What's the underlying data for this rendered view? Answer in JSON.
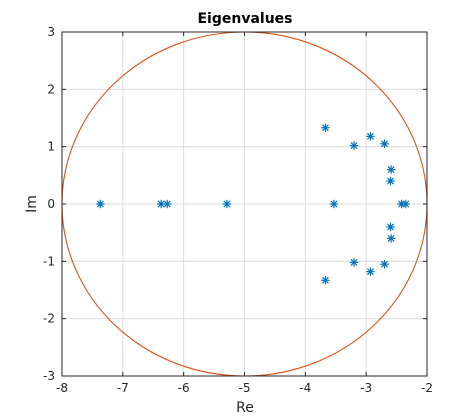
{
  "chart_data": {
    "type": "scatter",
    "title": "Eigenvalues",
    "xlabel": "Re",
    "ylabel": "Im",
    "xlim": [
      -8,
      -2
    ],
    "ylim": [
      -3,
      3
    ],
    "xticks": [
      -8,
      -7,
      -6,
      -5,
      -4,
      -3,
      -2
    ],
    "yticks": [
      -3,
      -2,
      -1,
      0,
      1,
      2,
      3
    ],
    "grid": true,
    "series": [
      {
        "marker": "asterisk",
        "color": "#0072BD",
        "points": [
          [
            -7.37,
            0
          ],
          [
            -6.37,
            0
          ],
          [
            -6.27,
            0
          ],
          [
            -5.29,
            0
          ],
          [
            -3.67,
            1.33
          ],
          [
            -3.67,
            -1.33
          ],
          [
            -3.53,
            0
          ],
          [
            -3.2,
            1.02
          ],
          [
            -3.2,
            -1.02
          ],
          [
            -2.93,
            1.18
          ],
          [
            -2.93,
            -1.18
          ],
          [
            -2.7,
            1.05
          ],
          [
            -2.7,
            -1.05
          ],
          [
            -2.59,
            0.6
          ],
          [
            -2.59,
            -0.6
          ],
          [
            -2.6,
            0.4
          ],
          [
            -2.6,
            -0.4
          ],
          [
            -2.42,
            0
          ],
          [
            -2.35,
            0
          ]
        ]
      },
      {
        "shape": "circle",
        "color": "#D95319",
        "center": [
          -5,
          0
        ],
        "radius": 3
      }
    ]
  }
}
